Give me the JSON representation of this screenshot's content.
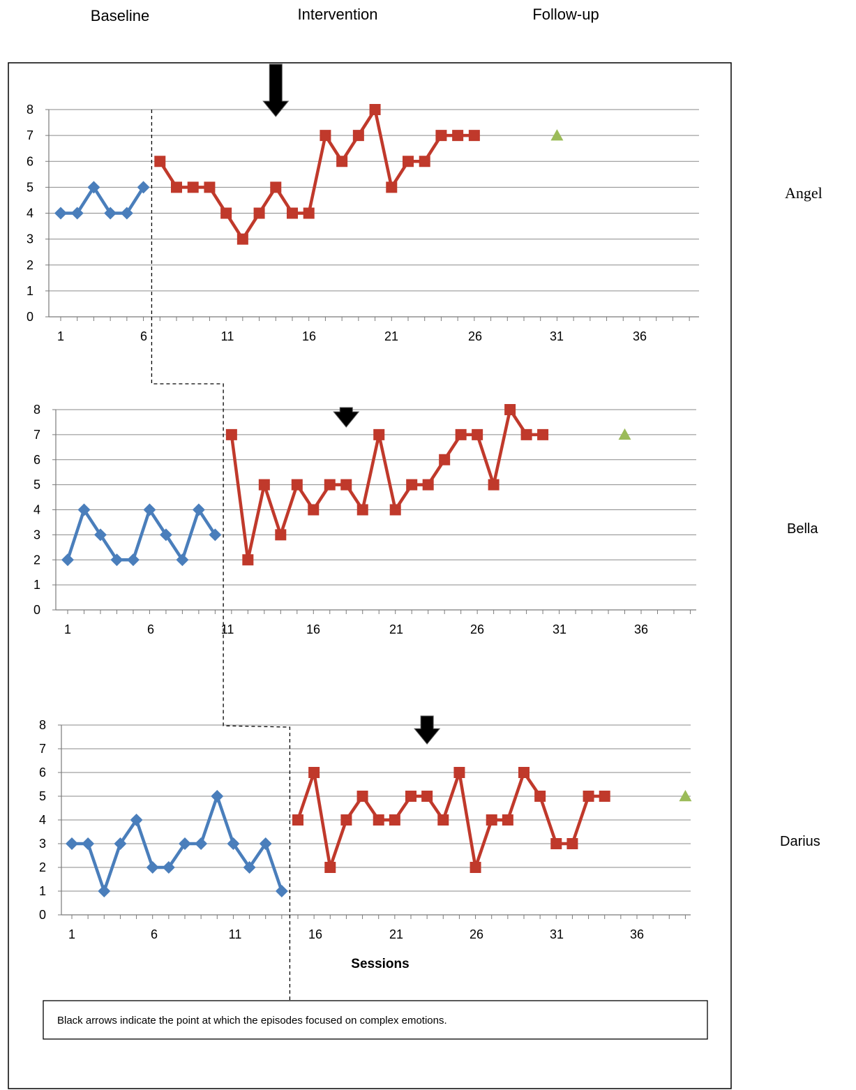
{
  "legend": {
    "baseline": {
      "label": "Baseline",
      "color": "#4a7ebb"
    },
    "intervention": {
      "label": "Intervention",
      "color": "#c0392b"
    },
    "followup": {
      "label": "Follow-up",
      "color": "#9bbb59"
    }
  },
  "chart_data": [
    {
      "type": "line",
      "participant": "Angel",
      "x_ticks": [
        "1",
        "6",
        "11",
        "16",
        "21",
        "26",
        "31",
        "36"
      ],
      "y_ticks": [
        "0",
        "1",
        "2",
        "3",
        "4",
        "5",
        "6",
        "7",
        "8"
      ],
      "ylim": [
        0,
        8
      ],
      "xlim": [
        1,
        39
      ],
      "grid": true,
      "series": [
        {
          "phase": "baseline",
          "marker": "diamond",
          "x": [
            1,
            2,
            3,
            4,
            5,
            6
          ],
          "y": [
            4,
            4,
            5,
            4,
            4,
            5
          ]
        },
        {
          "phase": "intervention",
          "marker": "square",
          "x": [
            7,
            8,
            9,
            10,
            11,
            12,
            13,
            14,
            15,
            16,
            17,
            18,
            19,
            20,
            21,
            22,
            23,
            24,
            25,
            26
          ],
          "y": [
            6,
            5,
            5,
            5,
            4,
            3,
            4,
            5,
            4,
            4,
            7,
            6,
            7,
            8,
            5,
            6,
            6,
            7,
            7,
            7
          ]
        },
        {
          "phase": "followup",
          "marker": "triangle",
          "x": [
            31
          ],
          "y": [
            7
          ]
        }
      ],
      "arrow_session": 14,
      "phase_change_after": 6.5
    },
    {
      "type": "line",
      "participant": "Bella",
      "x_ticks": [
        "1",
        "6",
        "11",
        "16",
        "21",
        "26",
        "31",
        "36"
      ],
      "y_ticks": [
        "0",
        "1",
        "2",
        "3",
        "4",
        "5",
        "6",
        "7",
        "8"
      ],
      "ylim": [
        0,
        8
      ],
      "xlim": [
        1,
        39
      ],
      "grid": true,
      "series": [
        {
          "phase": "baseline",
          "marker": "diamond",
          "x": [
            1,
            2,
            3,
            4,
            5,
            6,
            7,
            8,
            9,
            10
          ],
          "y": [
            2,
            4,
            3,
            2,
            2,
            4,
            3,
            2,
            4,
            3
          ]
        },
        {
          "phase": "intervention",
          "marker": "square",
          "x": [
            11,
            12,
            13,
            14,
            15,
            16,
            17,
            18,
            19,
            20,
            21,
            22,
            23,
            24,
            25,
            26,
            27,
            28,
            29,
            30
          ],
          "y": [
            7,
            2,
            5,
            3,
            5,
            4,
            5,
            5,
            4,
            7,
            4,
            5,
            5,
            6,
            7,
            7,
            5,
            8,
            7,
            7
          ]
        },
        {
          "phase": "followup",
          "marker": "triangle",
          "x": [
            35
          ],
          "y": [
            7
          ]
        }
      ],
      "arrow_session": 18,
      "phase_change_after": 10.5
    },
    {
      "type": "line",
      "participant": "Darius",
      "x_ticks": [
        "1",
        "6",
        "11",
        "16",
        "21",
        "26",
        "31",
        "36"
      ],
      "y_ticks": [
        "0",
        "1",
        "2",
        "3",
        "4",
        "5",
        "6",
        "7",
        "8"
      ],
      "ylim": [
        0,
        8
      ],
      "xlim": [
        1,
        39
      ],
      "grid": true,
      "xlabel": "Sessions",
      "series": [
        {
          "phase": "baseline",
          "marker": "diamond",
          "x": [
            1,
            2,
            3,
            4,
            5,
            6,
            7,
            8,
            9,
            10,
            11,
            12,
            13,
            14
          ],
          "y": [
            3,
            3,
            1,
            3,
            4,
            2,
            2,
            3,
            3,
            5,
            3,
            2,
            3,
            1
          ]
        },
        {
          "phase": "intervention",
          "marker": "square",
          "x": [
            15,
            16,
            17,
            18,
            19,
            20,
            21,
            22,
            23,
            24,
            25,
            26,
            27,
            28,
            29,
            30,
            31,
            32,
            33,
            34
          ],
          "y": [
            4,
            6,
            2,
            4,
            5,
            4,
            4,
            5,
            5,
            4,
            6,
            2,
            4,
            4,
            6,
            5,
            3,
            3,
            5,
            5
          ]
        },
        {
          "phase": "followup",
          "marker": "triangle",
          "x": [
            39
          ],
          "y": [
            5
          ]
        }
      ],
      "arrow_session": 23,
      "phase_change_after": 14.5
    }
  ],
  "note": "Black arrows indicate the point at which the episodes focused on complex emotions."
}
